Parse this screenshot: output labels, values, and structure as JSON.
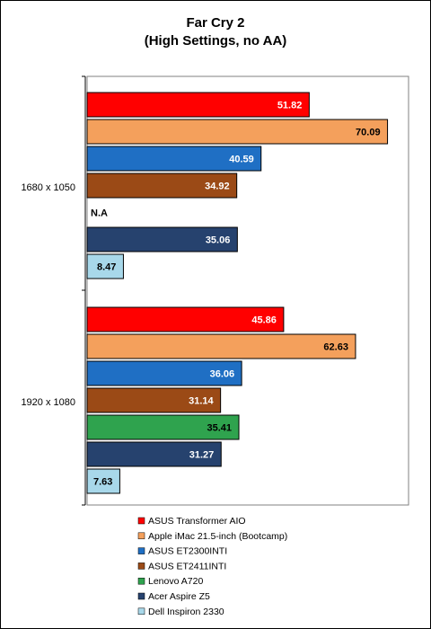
{
  "chart_data": {
    "type": "bar",
    "orientation": "horizontal",
    "title": "Far Cry 2",
    "subtitle": "(High Settings, no AA)",
    "xlim": [
      0,
      75
    ],
    "grid": false,
    "legend_position": "bottom",
    "categories": [
      "1680 x 1050",
      "1920 x 1080"
    ],
    "series": [
      {
        "name": "ASUS Transformer AIO",
        "color": "#ff0000",
        "text_color": "#ffffff",
        "values": [
          51.82,
          45.86
        ],
        "labels": [
          "51.82",
          "45.86"
        ]
      },
      {
        "name": "Apple iMac 21.5-inch (Bootcamp)",
        "color": "#f4a05c",
        "text_color": "#000000",
        "values": [
          70.09,
          62.63
        ],
        "labels": [
          "70.09",
          "62.63"
        ]
      },
      {
        "name": "ASUS ET2300INTI",
        "color": "#1f6fc4",
        "text_color": "#ffffff",
        "values": [
          40.59,
          36.06
        ],
        "labels": [
          "40.59",
          "36.06"
        ]
      },
      {
        "name": "ASUS ET2411INTI",
        "color": "#9b4a16",
        "text_color": "#ffffff",
        "values": [
          34.92,
          31.14
        ],
        "labels": [
          "34.92",
          "31.14"
        ]
      },
      {
        "name": "Lenovo A720",
        "color": "#2fa34e",
        "text_color": "#000000",
        "values": [
          null,
          35.41
        ],
        "labels": [
          "N.A",
          "35.41"
        ]
      },
      {
        "name": "Acer Aspire Z5",
        "color": "#26426e",
        "text_color": "#ffffff",
        "values": [
          35.06,
          31.27
        ],
        "labels": [
          "35.06",
          "31.27"
        ]
      },
      {
        "name": "Dell Inspiron 2330",
        "color": "#a8d8ea",
        "text_color": "#000000",
        "values": [
          8.47,
          7.63
        ],
        "labels": [
          "8.47",
          "7.63"
        ]
      }
    ]
  }
}
